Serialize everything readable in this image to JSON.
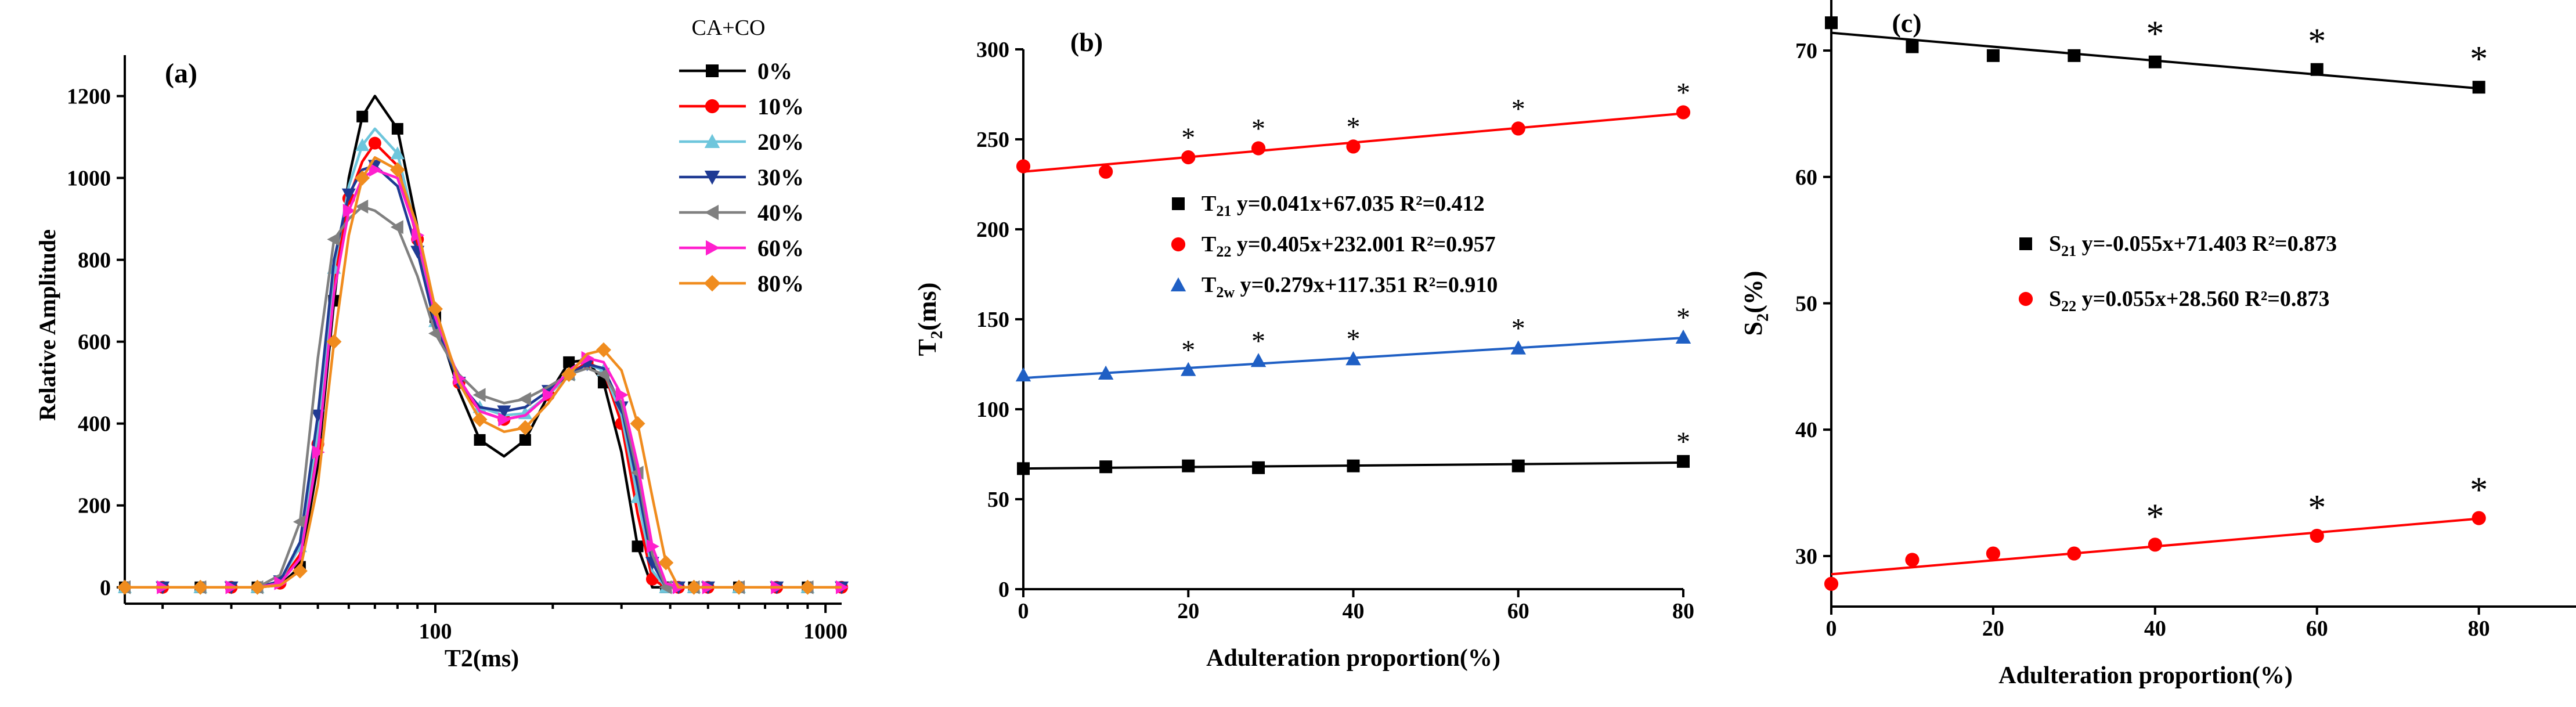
{
  "chart_data": [
    {
      "type": "line",
      "panel_label": "(a)",
      "xlabel": "T2(ms)",
      "ylabel": "Relative Amplitude",
      "xscale": "log",
      "xlim": [
        16,
        1100
      ],
      "ylim": [
        -40,
        1300
      ],
      "xticks": [
        100,
        1000
      ],
      "xtick_labels": [
        "100",
        "1000"
      ],
      "yticks": [
        0,
        200,
        400,
        600,
        800,
        1000,
        1200
      ],
      "ytick_labels": [
        "0",
        "200",
        "400",
        "600",
        "800",
        "1000",
        "1200"
      ],
      "legend_title": "CA+CO",
      "legend_position": "top-right",
      "x": [
        16,
        20,
        25,
        30,
        35,
        40,
        45,
        50,
        55,
        60,
        65,
        70,
        80,
        90,
        100,
        115,
        130,
        150,
        170,
        195,
        220,
        245,
        270,
        300,
        330,
        360,
        390,
        420,
        460,
        500,
        600,
        750,
        900,
        1100
      ],
      "series": [
        {
          "name": "0%",
          "color": "#000000",
          "marker": "square",
          "values": [
            0,
            0,
            0,
            0,
            0,
            5,
            50,
            300,
            700,
            1000,
            1150,
            1200,
            1120,
            880,
            660,
            480,
            360,
            320,
            360,
            470,
            550,
            555,
            500,
            330,
            100,
            0,
            0,
            0,
            0,
            0,
            0,
            0,
            0,
            0
          ]
        },
        {
          "name": "10%",
          "color": "#ff0000",
          "marker": "circle",
          "values": [
            0,
            0,
            0,
            0,
            0,
            10,
            80,
            350,
            740,
            950,
            1040,
            1085,
            1030,
            850,
            660,
            500,
            430,
            410,
            420,
            470,
            520,
            550,
            530,
            400,
            180,
            20,
            0,
            0,
            0,
            0,
            0,
            0,
            0,
            0
          ]
        },
        {
          "name": "20%",
          "color": "#6ec6dc",
          "marker": "triangle-up",
          "values": [
            0,
            0,
            0,
            0,
            0,
            15,
            100,
            380,
            780,
            980,
            1080,
            1120,
            1060,
            860,
            650,
            500,
            440,
            420,
            425,
            470,
            520,
            545,
            530,
            420,
            220,
            40,
            0,
            0,
            0,
            0,
            0,
            0,
            0,
            0
          ]
        },
        {
          "name": "30%",
          "color": "#1f3a93",
          "marker": "triangle-down",
          "values": [
            0,
            0,
            0,
            0,
            0,
            15,
            110,
            420,
            800,
            960,
            1020,
            1030,
            980,
            820,
            640,
            500,
            440,
            430,
            440,
            480,
            520,
            545,
            535,
            440,
            250,
            60,
            0,
            0,
            0,
            0,
            0,
            0,
            0,
            0
          ]
        },
        {
          "name": "40%",
          "color": "#808080",
          "marker": "triangle-left",
          "values": [
            0,
            0,
            0,
            0,
            0,
            30,
            160,
            560,
            850,
            900,
            930,
            920,
            880,
            760,
            620,
            520,
            470,
            450,
            460,
            490,
            520,
            535,
            520,
            450,
            280,
            80,
            0,
            0,
            0,
            0,
            0,
            0,
            0,
            0
          ]
        },
        {
          "name": "60%",
          "color": "#ff1fce",
          "marker": "triangle-right",
          "values": [
            0,
            0,
            0,
            0,
            0,
            10,
            70,
            330,
            720,
            920,
            1000,
            1020,
            1000,
            860,
            660,
            510,
            430,
            410,
            420,
            470,
            530,
            560,
            550,
            470,
            300,
            100,
            10,
            0,
            0,
            0,
            0,
            0,
            0,
            0
          ]
        },
        {
          "name": "80%",
          "color": "#f08c1e",
          "marker": "diamond",
          "values": [
            0,
            0,
            0,
            0,
            0,
            5,
            40,
            250,
            600,
            860,
            1000,
            1050,
            1020,
            880,
            680,
            500,
            410,
            380,
            390,
            450,
            520,
            570,
            580,
            530,
            400,
            220,
            60,
            0,
            0,
            0,
            0,
            0,
            0,
            0
          ]
        }
      ]
    },
    {
      "type": "scatter",
      "panel_label": "(b)",
      "xlabel": "Adulteration proportion(%)",
      "ylabel": "T2(ms)",
      "xlim": [
        0,
        80
      ],
      "ylim": [
        0,
        300
      ],
      "xticks": [
        0,
        20,
        40,
        60,
        80
      ],
      "xtick_labels": [
        "0",
        "20",
        "40",
        "60",
        "80"
      ],
      "yticks": [
        0,
        50,
        100,
        150,
        200,
        250,
        300
      ],
      "ytick_labels": [
        "0",
        "50",
        "100",
        "150",
        "200",
        "250",
        "300"
      ],
      "legend_position": "center",
      "series": [
        {
          "name": "T21",
          "equation": "y=0.041x+67.035",
          "r2": "R²=0.412",
          "color": "#000000",
          "marker": "square",
          "fit": {
            "slope": 0.041,
            "intercept": 67.035
          },
          "x": [
            0,
            10,
            20,
            28.5,
            40,
            60,
            80
          ],
          "values": [
            67,
            68,
            68.5,
            67.5,
            68.5,
            68.5,
            71
          ],
          "significant": [
            false,
            false,
            false,
            false,
            false,
            false,
            true
          ]
        },
        {
          "name": "T22",
          "equation": "y=0.405x+232.001",
          "r2": "R²=0.957",
          "color": "#ff0000",
          "marker": "circle",
          "fit": {
            "slope": 0.405,
            "intercept": 232.001
          },
          "x": [
            0,
            10,
            20,
            28.5,
            40,
            60,
            80
          ],
          "values": [
            235,
            232,
            240,
            245,
            246,
            256,
            265
          ],
          "significant": [
            false,
            false,
            true,
            true,
            true,
            true,
            true
          ]
        },
        {
          "name": "T2w",
          "equation": "y=0.279x+117.351",
          "r2": "R²=0.910",
          "color": "#1f5fc4",
          "marker": "triangle-up",
          "fit": {
            "slope": 0.279,
            "intercept": 117.351
          },
          "x": [
            0,
            10,
            20,
            28.5,
            40,
            60,
            80
          ],
          "values": [
            119,
            120,
            122,
            127,
            128,
            134,
            140
          ],
          "significant": [
            false,
            false,
            true,
            true,
            true,
            true,
            true
          ]
        }
      ]
    },
    {
      "type": "scatter",
      "panel_label": "(c)",
      "xlabel": "Adulteration proportion(%)",
      "ylabel": "S2(%)",
      "xlim": [
        0,
        92
      ],
      "ylim": [
        26,
        74
      ],
      "xticks": [
        0,
        20,
        40,
        60,
        80
      ],
      "xtick_labels": [
        "0",
        "20",
        "40",
        "60",
        "80"
      ],
      "yticks": [
        30,
        40,
        50,
        60,
        70
      ],
      "ytick_labels": [
        "30",
        "40",
        "50",
        "60",
        "70"
      ],
      "legend_position": "center",
      "series": [
        {
          "name": "S21",
          "equation": "y=-0.055x+71.403",
          "r2": "R²=0.873",
          "color": "#000000",
          "marker": "square",
          "fit": {
            "slope": -0.055,
            "intercept": 71.403
          },
          "x": [
            0,
            10,
            20,
            30,
            40,
            60,
            80
          ],
          "values": [
            72.2,
            70.3,
            69.6,
            69.6,
            69.1,
            68.5,
            67.1
          ],
          "significant": [
            false,
            false,
            false,
            false,
            true,
            true,
            true
          ]
        },
        {
          "name": "S22",
          "equation": "y=0.055x+28.560",
          "r2": "R²=0.873",
          "color": "#ff0000",
          "marker": "circle",
          "fit": {
            "slope": 0.055,
            "intercept": 28.56
          },
          "x": [
            0,
            10,
            20,
            30,
            40,
            60,
            80
          ],
          "values": [
            27.8,
            29.7,
            30.2,
            30.2,
            30.9,
            31.6,
            33.0
          ],
          "significant": [
            false,
            false,
            false,
            false,
            true,
            true,
            true
          ]
        }
      ]
    }
  ],
  "significance_marker": "*"
}
